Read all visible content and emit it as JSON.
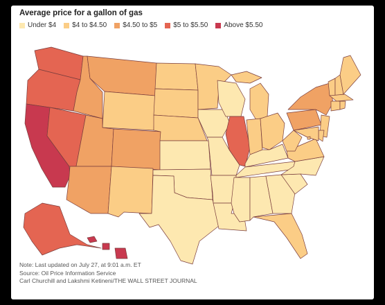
{
  "title": "Average price for a gallon of gas",
  "legend": [
    {
      "label": "Under $4",
      "color": "#fde8b0"
    },
    {
      "label": "$4 to $4.50",
      "color": "#fbcd86"
    },
    {
      "label": "$4.50 to $5",
      "color": "#f0a264"
    },
    {
      "label": "$5 to $5.50",
      "color": "#e46552"
    },
    {
      "label": "Above $5.50",
      "color": "#c8394f"
    }
  ],
  "notes": {
    "line1": "Note: Last updated on July 27, at 9:01 a.m. ET",
    "line2": "Source: Oil Price Information Service",
    "line3": "Carl Churchill and Lakshmi Ketineni/THE WALL STREET JOURNAL"
  },
  "map_data": {
    "type": "choropleth",
    "states": [
      {
        "id": "WA",
        "bin": 3
      },
      {
        "id": "OR",
        "bin": 3
      },
      {
        "id": "CA",
        "bin": 4
      },
      {
        "id": "NV",
        "bin": 3
      },
      {
        "id": "ID",
        "bin": 2
      },
      {
        "id": "MT",
        "bin": 2
      },
      {
        "id": "WY",
        "bin": 1
      },
      {
        "id": "UT",
        "bin": 2
      },
      {
        "id": "AZ",
        "bin": 2
      },
      {
        "id": "CO",
        "bin": 2
      },
      {
        "id": "NM",
        "bin": 1
      },
      {
        "id": "ND",
        "bin": 1
      },
      {
        "id": "SD",
        "bin": 1
      },
      {
        "id": "NE",
        "bin": 1
      },
      {
        "id": "KS",
        "bin": 0
      },
      {
        "id": "OK",
        "bin": 0
      },
      {
        "id": "TX",
        "bin": 0
      },
      {
        "id": "MN",
        "bin": 1
      },
      {
        "id": "IA",
        "bin": 0
      },
      {
        "id": "MO",
        "bin": 0
      },
      {
        "id": "AR",
        "bin": 0
      },
      {
        "id": "LA",
        "bin": 0
      },
      {
        "id": "WI",
        "bin": 0
      },
      {
        "id": "IL",
        "bin": 3
      },
      {
        "id": "MI",
        "bin": 1
      },
      {
        "id": "IN",
        "bin": 1
      },
      {
        "id": "OH",
        "bin": 1
      },
      {
        "id": "KY",
        "bin": 0
      },
      {
        "id": "TN",
        "bin": 0
      },
      {
        "id": "MS",
        "bin": 0
      },
      {
        "id": "AL",
        "bin": 0
      },
      {
        "id": "GA",
        "bin": 0
      },
      {
        "id": "FL",
        "bin": 1
      },
      {
        "id": "SC",
        "bin": 0
      },
      {
        "id": "NC",
        "bin": 0
      },
      {
        "id": "VA",
        "bin": 1
      },
      {
        "id": "WV",
        "bin": 1
      },
      {
        "id": "PA",
        "bin": 2
      },
      {
        "id": "NY",
        "bin": 2
      },
      {
        "id": "NJ",
        "bin": 1
      },
      {
        "id": "DE",
        "bin": 1
      },
      {
        "id": "MD",
        "bin": 1
      },
      {
        "id": "CT",
        "bin": 1
      },
      {
        "id": "RI",
        "bin": 1
      },
      {
        "id": "MA",
        "bin": 1
      },
      {
        "id": "VT",
        "bin": 1
      },
      {
        "id": "NH",
        "bin": 1
      },
      {
        "id": "ME",
        "bin": 1
      },
      {
        "id": "DC",
        "bin": 1
      },
      {
        "id": "AK",
        "bin": 3
      },
      {
        "id": "HI",
        "bin": 4
      }
    ]
  }
}
